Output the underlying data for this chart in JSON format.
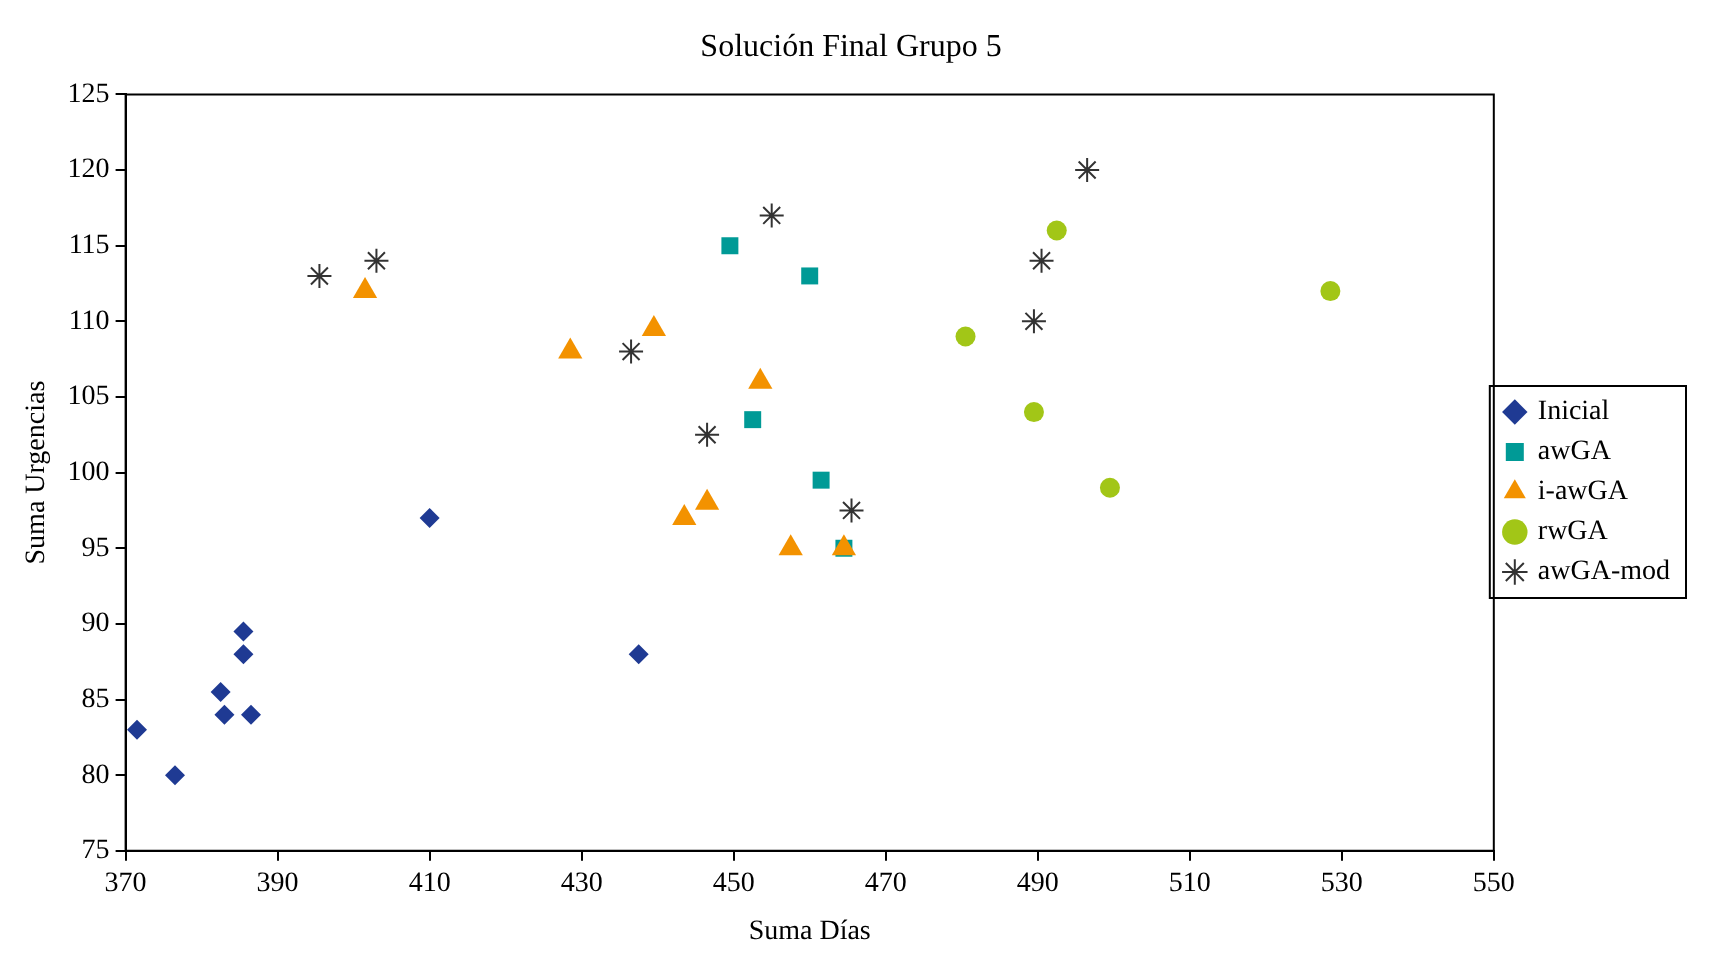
{
  "chart_data": {
    "type": "scatter",
    "title": "Solución Final Grupo 5",
    "xlabel": "Suma Días",
    "ylabel": "Suma Urgencias",
    "xlim": [
      370,
      550
    ],
    "xticks": [
      370,
      390,
      410,
      430,
      450,
      470,
      490,
      510,
      530,
      550
    ],
    "ylim": [
      75,
      125
    ],
    "yticks": [
      75,
      80,
      85,
      90,
      95,
      100,
      105,
      110,
      115,
      120,
      125
    ],
    "grid": false,
    "legend": "right",
    "series": [
      {
        "name": "Inicial",
        "color": "#1f3a93",
        "marker": "diamond",
        "x": [
          371.5,
          376.5,
          382.5,
          383,
          385.5,
          385.5,
          386.5,
          410,
          437.5
        ],
        "values": [
          83,
          80,
          85.5,
          84,
          89.5,
          88,
          84,
          97,
          88
        ]
      },
      {
        "name": "awGA",
        "color": "#009a96",
        "marker": "square",
        "x": [
          449.5,
          460,
          452.5,
          461.5,
          464.5
        ],
        "values": [
          115,
          113,
          103.5,
          99.5,
          95
        ]
      },
      {
        "name": "i-awGA",
        "color": "#f39200",
        "marker": "triangle",
        "x": [
          401.5,
          428.5,
          439.5,
          453.5,
          446.5,
          443.5,
          457.5,
          464.5
        ],
        "values": [
          112,
          108,
          109.5,
          106,
          98,
          97,
          95,
          95
        ]
      },
      {
        "name": "rwGA",
        "color": "#a2c617",
        "marker": "circle",
        "x": [
          480.5,
          492.5,
          489.5,
          499.5,
          528.5
        ],
        "values": [
          109,
          116,
          104,
          99,
          112
        ]
      },
      {
        "name": "awGA-mod",
        "color": "#333333",
        "marker": "cross",
        "x": [
          395.5,
          403,
          436.5,
          446.5,
          455,
          465.5,
          496.5,
          490.5,
          489.5
        ],
        "values": [
          113,
          114,
          108,
          102.5,
          117,
          97.5,
          120,
          114,
          110
        ]
      }
    ]
  }
}
